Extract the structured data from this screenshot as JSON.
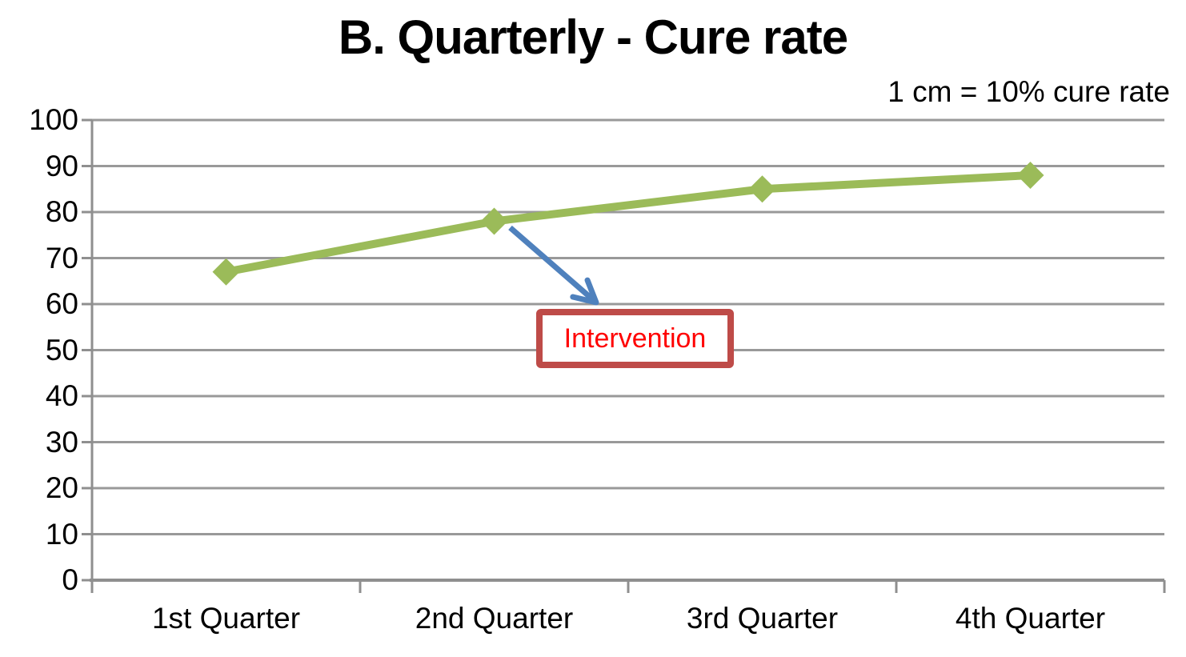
{
  "title": "B. Quarterly - Cure rate",
  "scale_annotation": "1 cm = 10% cure rate",
  "intervention": {
    "label": "Intervention"
  },
  "colors": {
    "line_green": "#9BBB59",
    "arrow_blue": "#4F81BD",
    "callout_border_red": "#BE4B48",
    "callout_text_red": "#FF0000",
    "grid_gray": "#999999",
    "axis_gray": "#8f8f8f",
    "text_black": "#000000"
  },
  "chart_data": {
    "type": "line",
    "title": "B. Quarterly - Cure rate",
    "categories": [
      "1st Quarter",
      "2nd Quarter",
      "3rd Quarter",
      "4th Quarter"
    ],
    "values": [
      67,
      78,
      85,
      88
    ],
    "xlabel": "",
    "ylabel": "",
    "ylim": [
      0,
      100
    ],
    "yticks": [
      0,
      10,
      20,
      30,
      40,
      50,
      60,
      70,
      80,
      90,
      100
    ],
    "grid": "horizontal",
    "legend": "none",
    "marker": "diamond",
    "line_color": "#9BBB59",
    "annotations": [
      {
        "text": "1 cm = 10% cure rate",
        "position": "top-right"
      },
      {
        "text": "Intervention",
        "type": "callout-box-with-arrow",
        "points_to": {
          "category": "2nd Quarter",
          "value": 78
        },
        "box_border_color": "#BE4B48",
        "text_color": "#FF0000",
        "arrow_color": "#4F81BD"
      }
    ]
  }
}
